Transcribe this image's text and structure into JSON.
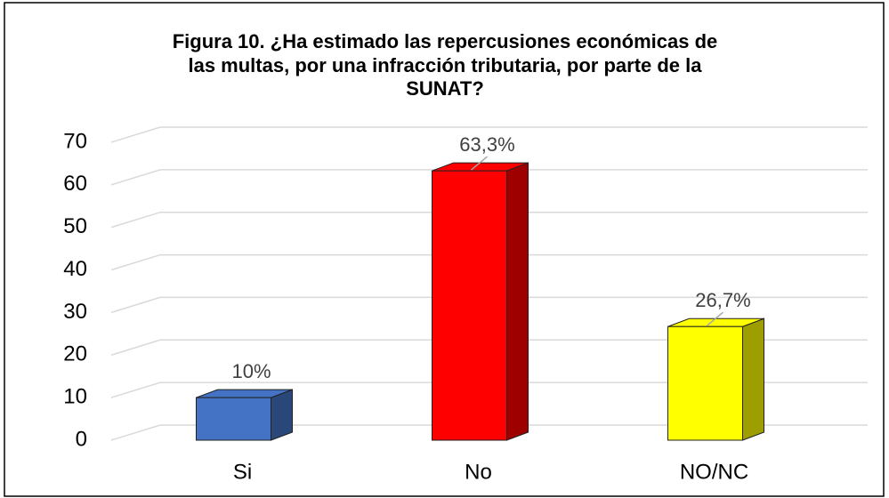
{
  "chart_data": {
    "type": "bar3d",
    "title": [
      "Figura 10. ¿Ha estimado las repercusiones económicas de",
      "las multas, por una infracción tributaria, por parte de la",
      "SUNAT?"
    ],
    "categories": [
      "Si",
      "No",
      "NO/NC"
    ],
    "values": [
      10,
      63.3,
      26.7
    ],
    "value_labels": [
      "10%",
      "63,3%",
      "26,7%"
    ],
    "colors": [
      "#4472c4",
      "#ff0000",
      "#ffff00"
    ],
    "ylim": [
      0,
      70
    ],
    "yticks": [
      0,
      10,
      20,
      30,
      40,
      50,
      60,
      70
    ],
    "grid": true
  }
}
